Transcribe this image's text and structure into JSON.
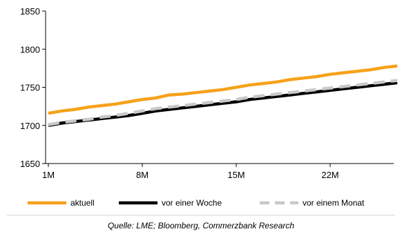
{
  "chart_data": {
    "type": "line",
    "x_ticks": [
      "1M",
      "8M",
      "15M",
      "22M"
    ],
    "y_ticks": [
      "1850",
      "1800",
      "1750",
      "1700",
      "1650"
    ],
    "ylim": [
      1650,
      1850
    ],
    "x": [
      1,
      2,
      3,
      4,
      5,
      6,
      7,
      8,
      9,
      10,
      11,
      12,
      13,
      14,
      15,
      16,
      17,
      18,
      19,
      20,
      21,
      22,
      23,
      24,
      25,
      26,
      27
    ],
    "grid": false,
    "legend_position": "bottom",
    "series": [
      {
        "name": "aktuell",
        "color": "#f7a11a",
        "style": "solid",
        "values": [
          1716,
          1719,
          1721,
          1724,
          1726,
          1728,
          1731,
          1734,
          1736,
          1740,
          1741,
          1743,
          1745,
          1747,
          1750,
          1753,
          1755,
          1757,
          1760,
          1762,
          1764,
          1767,
          1769,
          1771,
          1773,
          1776,
          1778
        ]
      },
      {
        "name": "vor einer Woche",
        "color": "#000000",
        "style": "solid",
        "values": [
          1700,
          1703,
          1705,
          1707,
          1709,
          1711,
          1713,
          1716,
          1719,
          1721,
          1723,
          1725,
          1727,
          1729,
          1731,
          1734,
          1736,
          1738,
          1740,
          1742,
          1744,
          1746,
          1748,
          1750,
          1752,
          1754,
          1756
        ]
      },
      {
        "name": "vor einem Monat",
        "color": "#c8c8c8",
        "style": "dashed",
        "values": [
          1701,
          1704,
          1706,
          1708,
          1711,
          1713,
          1716,
          1719,
          1722,
          1724,
          1726,
          1728,
          1730,
          1732,
          1734,
          1737,
          1739,
          1741,
          1743,
          1745,
          1747,
          1749,
          1751,
          1753,
          1755,
          1757,
          1759
        ]
      }
    ]
  },
  "source": "Quelle: LME; Bloomberg, Commerzbank Research"
}
